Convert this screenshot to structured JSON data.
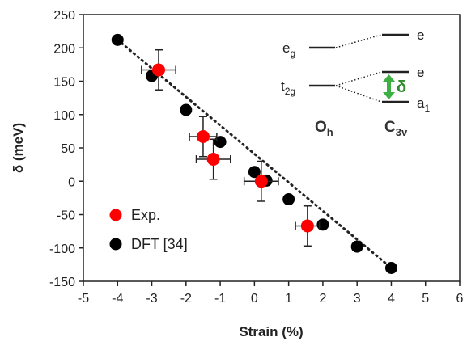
{
  "chart_data": {
    "type": "scatter",
    "xlabel": "Strain (%)",
    "ylabel": "δ (meV)",
    "xlim": [
      -5,
      6
    ],
    "ylim": [
      -150,
      250
    ],
    "xticks": [
      "-5",
      "-4",
      "-3",
      "-2",
      "-1",
      "0",
      "1",
      "2",
      "3",
      "4",
      "5",
      "6"
    ],
    "yticks": [
      "-150",
      "-100",
      "-50",
      "0",
      "50",
      "100",
      "150",
      "200",
      "250"
    ],
    "grid": false,
    "legend": "bottom-left",
    "series": [
      {
        "name": "Exp.",
        "color": "#ff0000",
        "x": [
          -2.8,
          -1.5,
          -1.2,
          0.2,
          1.55
        ],
        "y": [
          167,
          67,
          33,
          0,
          -67
        ],
        "xerr": [
          0.5,
          0.4,
          0.5,
          0.5,
          0.35
        ],
        "yerr": [
          30,
          30,
          30,
          30,
          30
        ]
      },
      {
        "name": "DFT [34]",
        "color": "#000000",
        "x": [
          -4,
          -3,
          -2,
          -1,
          0,
          0.35,
          1,
          2,
          3,
          4
        ],
        "y": [
          212,
          158,
          107,
          59,
          14,
          1,
          -27,
          -65,
          -98,
          -130
        ]
      }
    ],
    "fit_line": {
      "style": "dotted",
      "x": [
        -4,
        4
      ],
      "y": [
        212,
        -130
      ]
    },
    "inset": {
      "left_group": "O",
      "left_group_sub": "h",
      "right_group": "C",
      "right_group_sub": "3v",
      "levels_left": [
        {
          "label": "e",
          "sub": "g"
        },
        {
          "label": "t",
          "sub": "2g"
        }
      ],
      "levels_right": [
        {
          "label": "e",
          "sub": ""
        },
        {
          "label": "e",
          "sub": ""
        },
        {
          "label": "a",
          "sub": "1"
        }
      ],
      "splitting_label": "δ",
      "arrow_color": "#3cb043"
    }
  }
}
